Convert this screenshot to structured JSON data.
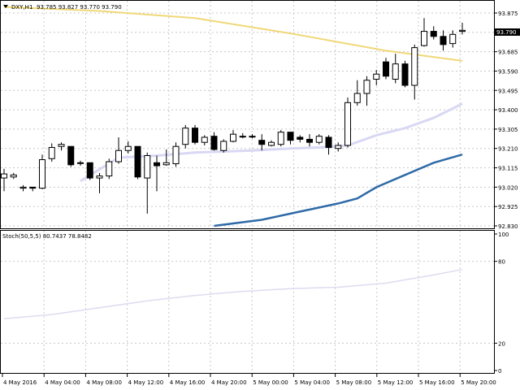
{
  "header": {
    "symbol": "DXY,H1",
    "ohlc": "93.785 93.827 93.770 93.790",
    "menu_icon": "triangle-down-icon"
  },
  "stoch_header": "Stoch(50,5,5) 80.7437 78.8482",
  "current_price": "93.790",
  "price_axis_labels": [
    "93.875",
    "93.780",
    "93.685",
    "93.590",
    "93.495",
    "93.400",
    "93.305",
    "93.210",
    "93.115",
    "93.020",
    "92.925",
    "92.830"
  ],
  "stoch_axis_labels": [
    "100",
    "80",
    "20",
    "0"
  ],
  "time_axis_labels": [
    "4 May 2016",
    "4 May 04:00",
    "4 May 08:00",
    "4 May 12:00",
    "4 May 16:00",
    "4 May 20:00",
    "5 May 00:00",
    "5 May 04:00",
    "5 May 08:00",
    "5 May 12:00",
    "5 May 16:00",
    "5 May 20:00"
  ],
  "colors": {
    "grid": "#c8c8c8",
    "candle": "#000000",
    "ma_slow": "#f0d878",
    "ma_mid": "#d8d8f4",
    "ma_blue": "#2f6aa8",
    "stoch_line": "#dcdcf0"
  },
  "chart_data": {
    "type": "candlestick",
    "symbol": "DXY",
    "timeframe": "H1",
    "price_range": [
      92.8,
      93.91
    ],
    "candles": [
      {
        "o": 93.065,
        "h": 93.11,
        "l": 93.0,
        "c": 93.085
      },
      {
        "o": 93.07,
        "h": 93.09,
        "l": 93.06,
        "c": 93.08
      },
      {
        "o": 93.015,
        "h": 93.03,
        "l": 93.0,
        "c": 93.02
      },
      {
        "o": 93.02,
        "h": 93.02,
        "l": 93.0,
        "c": 93.015
      },
      {
        "o": 93.015,
        "h": 93.18,
        "l": 93.01,
        "c": 93.155
      },
      {
        "o": 93.16,
        "h": 93.235,
        "l": 93.145,
        "c": 93.215
      },
      {
        "o": 93.22,
        "h": 93.24,
        "l": 93.2,
        "c": 93.23
      },
      {
        "o": 93.22,
        "h": 93.22,
        "l": 93.12,
        "c": 93.13
      },
      {
        "o": 93.14,
        "h": 93.15,
        "l": 93.125,
        "c": 93.14
      },
      {
        "o": 93.14,
        "h": 93.14,
        "l": 93.055,
        "c": 93.065
      },
      {
        "o": 93.065,
        "h": 93.09,
        "l": 92.99,
        "c": 93.075
      },
      {
        "o": 93.075,
        "h": 93.16,
        "l": 93.06,
        "c": 93.145
      },
      {
        "o": 93.145,
        "h": 93.265,
        "l": 93.135,
        "c": 93.2
      },
      {
        "o": 93.2,
        "h": 93.245,
        "l": 93.185,
        "c": 93.22
      },
      {
        "o": 93.22,
        "h": 93.22,
        "l": 93.06,
        "c": 93.07
      },
      {
        "o": 93.065,
        "h": 93.19,
        "l": 92.89,
        "c": 93.175
      },
      {
        "o": 93.14,
        "h": 93.175,
        "l": 93.0,
        "c": 93.125
      },
      {
        "o": 93.13,
        "h": 93.205,
        "l": 93.125,
        "c": 93.14
      },
      {
        "o": 93.135,
        "h": 93.24,
        "l": 93.12,
        "c": 93.22
      },
      {
        "o": 93.23,
        "h": 93.325,
        "l": 93.21,
        "c": 93.31
      },
      {
        "o": 93.31,
        "h": 93.325,
        "l": 93.23,
        "c": 93.24
      },
      {
        "o": 93.24,
        "h": 93.275,
        "l": 93.225,
        "c": 93.265
      },
      {
        "o": 93.27,
        "h": 93.29,
        "l": 93.2,
        "c": 93.205
      },
      {
        "o": 93.2,
        "h": 93.255,
        "l": 93.19,
        "c": 93.245
      },
      {
        "o": 93.245,
        "h": 93.3,
        "l": 93.24,
        "c": 93.28
      },
      {
        "o": 93.27,
        "h": 93.285,
        "l": 93.26,
        "c": 93.27
      },
      {
        "o": 93.27,
        "h": 93.28,
        "l": 93.26,
        "c": 93.27
      },
      {
        "o": 93.25,
        "h": 93.28,
        "l": 93.2,
        "c": 93.23
      },
      {
        "o": 93.225,
        "h": 93.25,
        "l": 93.22,
        "c": 93.24
      },
      {
        "o": 93.23,
        "h": 93.3,
        "l": 93.22,
        "c": 93.29
      },
      {
        "o": 93.29,
        "h": 93.29,
        "l": 93.23,
        "c": 93.25
      },
      {
        "o": 93.265,
        "h": 93.275,
        "l": 93.24,
        "c": 93.255
      },
      {
        "o": 93.255,
        "h": 93.28,
        "l": 93.22,
        "c": 93.24
      },
      {
        "o": 93.24,
        "h": 93.28,
        "l": 93.23,
        "c": 93.27
      },
      {
        "o": 93.265,
        "h": 93.275,
        "l": 93.18,
        "c": 93.215
      },
      {
        "o": 93.21,
        "h": 93.24,
        "l": 93.195,
        "c": 93.225
      },
      {
        "o": 93.225,
        "h": 93.46,
        "l": 93.215,
        "c": 93.435
      },
      {
        "o": 93.435,
        "h": 93.545,
        "l": 93.42,
        "c": 93.48
      },
      {
        "o": 93.48,
        "h": 93.565,
        "l": 93.42,
        "c": 93.545
      },
      {
        "o": 93.55,
        "h": 93.595,
        "l": 93.52,
        "c": 93.575
      },
      {
        "o": 93.635,
        "h": 93.655,
        "l": 93.55,
        "c": 93.565
      },
      {
        "o": 93.55,
        "h": 93.675,
        "l": 93.53,
        "c": 93.625
      },
      {
        "o": 93.625,
        "h": 93.64,
        "l": 93.51,
        "c": 93.52
      },
      {
        "o": 93.52,
        "h": 93.72,
        "l": 93.45,
        "c": 93.705
      },
      {
        "o": 93.715,
        "h": 93.85,
        "l": 93.71,
        "c": 93.785
      },
      {
        "o": 93.785,
        "h": 93.81,
        "l": 93.745,
        "c": 93.76
      },
      {
        "o": 93.76,
        "h": 93.79,
        "l": 93.69,
        "c": 93.72
      },
      {
        "o": 93.725,
        "h": 93.79,
        "l": 93.705,
        "c": 93.77
      },
      {
        "o": 93.785,
        "h": 93.827,
        "l": 93.77,
        "c": 93.79
      }
    ],
    "ma_slow": [
      [
        0,
        93.905
      ],
      [
        10,
        93.885
      ],
      [
        20,
        93.85
      ],
      [
        30,
        93.775
      ],
      [
        40,
        93.69
      ],
      [
        48,
        93.64
      ]
    ],
    "ma_mid": [
      [
        8,
        93.05
      ],
      [
        12,
        93.165
      ],
      [
        16,
        93.175
      ],
      [
        20,
        93.19
      ],
      [
        26,
        93.2
      ],
      [
        30,
        93.21
      ],
      [
        33,
        93.215
      ],
      [
        36,
        93.225
      ],
      [
        39,
        93.275
      ],
      [
        42,
        93.31
      ],
      [
        45,
        93.36
      ],
      [
        48,
        93.43
      ]
    ],
    "ma_blue": [
      [
        22,
        92.83
      ],
      [
        27,
        92.86
      ],
      [
        31,
        92.9
      ],
      [
        35,
        92.94
      ],
      [
        37,
        92.965
      ],
      [
        39,
        93.02
      ],
      [
        42,
        93.08
      ],
      [
        45,
        93.14
      ],
      [
        48,
        93.18
      ]
    ],
    "stochastic": {
      "name": "Stoch(50,5,5)",
      "main": 80.7437,
      "signal": 78.8482,
      "range": [
        0,
        100
      ],
      "levels": [
        20,
        80
      ],
      "line": [
        [
          0,
          38
        ],
        [
          5,
          41
        ],
        [
          10,
          46
        ],
        [
          15,
          51
        ],
        [
          20,
          55
        ],
        [
          25,
          58
        ],
        [
          30,
          60
        ],
        [
          35,
          61
        ],
        [
          40,
          64
        ],
        [
          45,
          70
        ],
        [
          48,
          74
        ]
      ]
    }
  }
}
